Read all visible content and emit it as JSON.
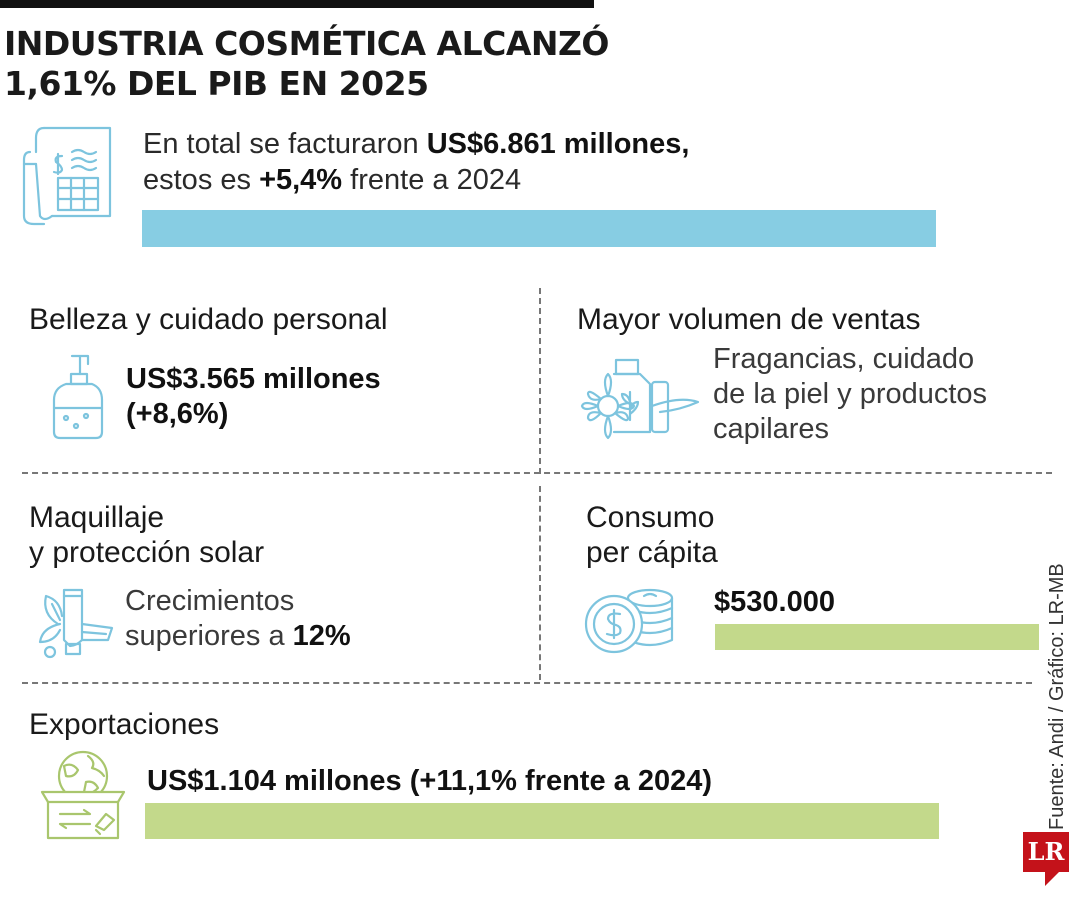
{
  "title": {
    "line1": "INDUSTRIA COSMÉTICA ALCANZÓ",
    "line2": "1,61% DEL PIB EN 2025"
  },
  "lead": {
    "line1_prefix": "En total se facturaron ",
    "line1_bold": "US$6.861 millones,",
    "line2_prefix": "estos es ",
    "line2_bold": "+5,4%",
    "line2_suffix": " frente a 2024"
  },
  "beauty": {
    "title": "Belleza y cuidado personal",
    "value_line1": "US$3.565 millones",
    "value_line2": "(+8,6%)"
  },
  "volume": {
    "title": "Mayor volumen de ventas",
    "line1": "Fragancias, cuidado",
    "line2": "de la piel y productos",
    "line3": "capilares"
  },
  "makeup": {
    "title_line1": "Maquillaje",
    "title_line2": "y protección solar",
    "line1": "Crecimientos",
    "line2_prefix": "superiores a ",
    "line2_bold": "12%"
  },
  "consumption": {
    "title_line1": "Consumo",
    "title_line2": "per cápita",
    "value": "$530.000"
  },
  "exports": {
    "title": "Exportaciones",
    "value": "US$1.104 millones (+11,1% frente a 2024)"
  },
  "source": "Fuente: Andi / Gráfico: LR-MB",
  "logo": "LR",
  "colors": {
    "blue_bar": "#87cde3",
    "green_bar": "#c3d98b",
    "icon_blue": "#7dc4de",
    "icon_green": "#a9c66d",
    "logo_red": "#c4121a"
  },
  "icons": {
    "lead": "invoice-icon",
    "beauty": "soap-bottle-icon",
    "volume": "perfume-flower-icon",
    "makeup": "cream-tube-icon",
    "consumption": "coins-icon",
    "exports": "globe-box-icon"
  }
}
